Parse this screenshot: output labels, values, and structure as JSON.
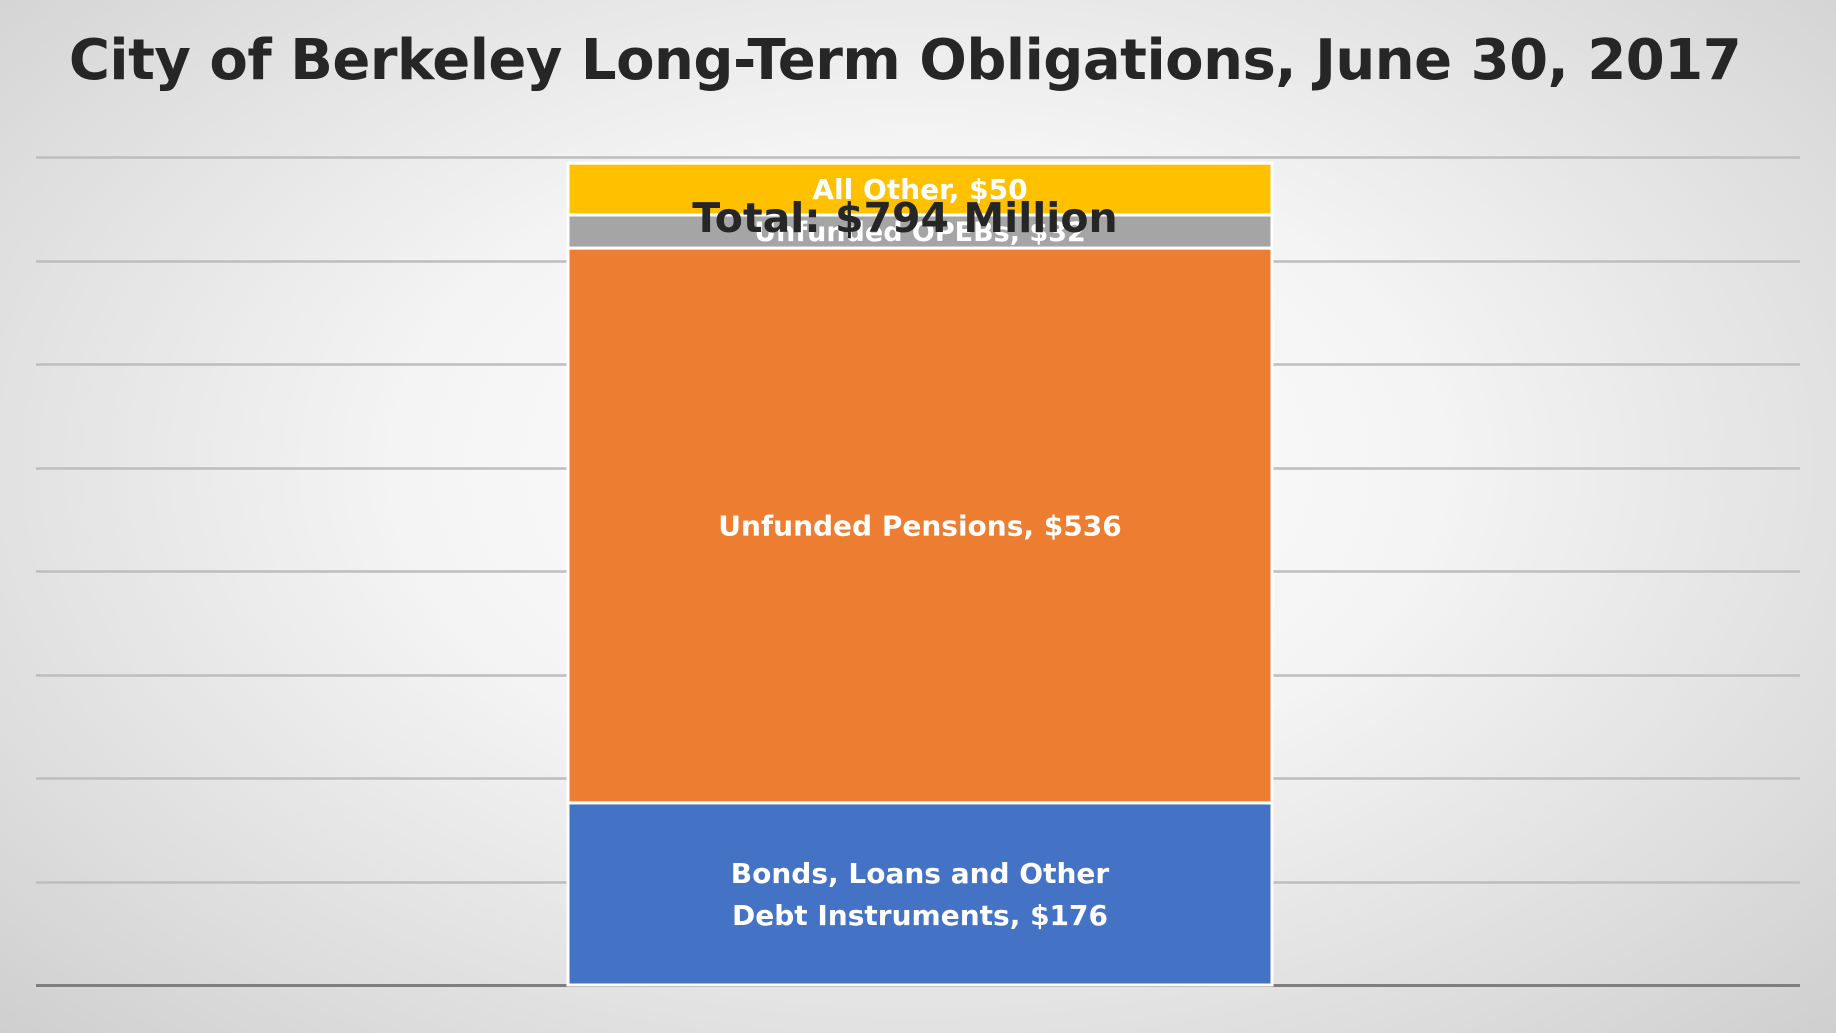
{
  "chart_data": {
    "type": "bar",
    "title": "City of Berkeley Long-Term Obligations, June 30, 2017",
    "total_label": "Total:  $794 Million",
    "categories": [
      ""
    ],
    "series": [
      {
        "name": "Bonds, Loans and Other Debt Instruments",
        "values": [
          176
        ],
        "label_lines": [
          "Bonds, Loans and Other",
          "Debt Instruments, $176"
        ],
        "color": "#4472c4"
      },
      {
        "name": "Unfunded Pensions",
        "values": [
          536
        ],
        "label_lines": [
          "Unfunded Pensions, $536"
        ],
        "color": "#ed7d31"
      },
      {
        "name": "Unfunded OPEBs",
        "values": [
          32
        ],
        "label_lines": [
          "Unfunded OPEBs, $32"
        ],
        "color": "#a5a5a5"
      },
      {
        "name": "All Other",
        "values": [
          50
        ],
        "label_lines": [
          "All Other, $50"
        ],
        "color": "#ffc000"
      }
    ],
    "stacked": true,
    "ylim": [
      0,
      800
    ],
    "grid": true,
    "legend": "none"
  }
}
